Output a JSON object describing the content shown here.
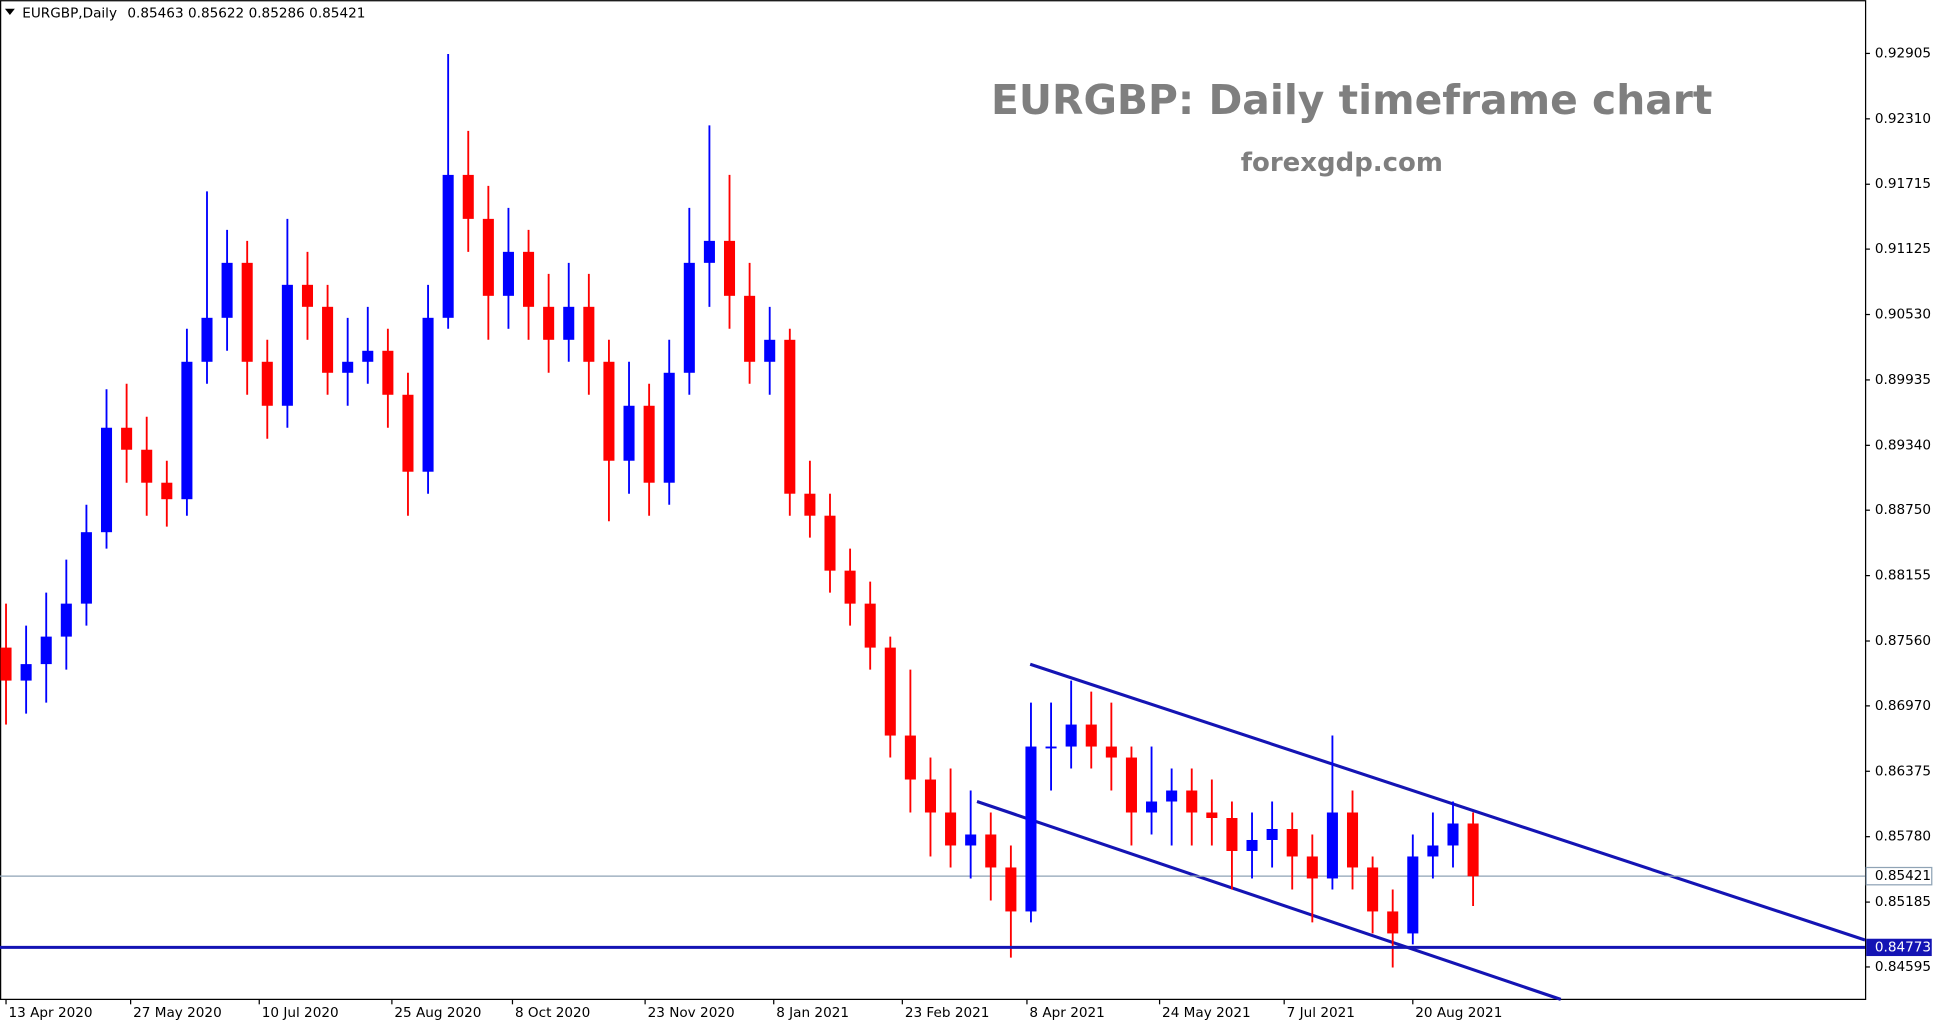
{
  "chart_data": {
    "type": "candlestick",
    "header": {
      "symbol": "EURGBP,Daily",
      "ohlc": [
        0.85463,
        0.85622,
        0.85286,
        0.85421
      ]
    },
    "title": "EURGBP: Daily timeframe chart",
    "subtitle": "forexgdp.com",
    "up_color": "#0000ff",
    "down_color": "#ff0000",
    "x": [
      0,
      5,
      10,
      15,
      20,
      25,
      30,
      35,
      40,
      45,
      50,
      55,
      60,
      65,
      70,
      75,
      80,
      85,
      90,
      95,
      100,
      105,
      110,
      115,
      120,
      125,
      130,
      135,
      140,
      145,
      150,
      155,
      160,
      165,
      170,
      175,
      180,
      185,
      190,
      195,
      200,
      205,
      210,
      215,
      220,
      225,
      230,
      235,
      240,
      245,
      250,
      255,
      260,
      265,
      270,
      275,
      280,
      285,
      290,
      295,
      300,
      305,
      310,
      315,
      320,
      325,
      330,
      335,
      340,
      345,
      350,
      355,
      360,
      365
    ],
    "open": [
      0.875,
      0.872,
      0.8735,
      0.876,
      0.879,
      0.8855,
      0.895,
      0.893,
      0.89,
      0.8885,
      0.901,
      0.905,
      0.91,
      0.901,
      0.897,
      0.908,
      0.906,
      0.9,
      0.901,
      0.902,
      0.898,
      0.891,
      0.905,
      0.918,
      0.914,
      0.907,
      0.911,
      0.906,
      0.903,
      0.906,
      0.901,
      0.892,
      0.897,
      0.89,
      0.9,
      0.91,
      0.912,
      0.907,
      0.901,
      0.903,
      0.889,
      0.887,
      0.882,
      0.879,
      0.875,
      0.867,
      0.863,
      0.86,
      0.857,
      0.858,
      0.855,
      0.851,
      0.866,
      0.866,
      0.868,
      0.866,
      0.865,
      0.86,
      0.861,
      0.862,
      0.86,
      0.8595,
      0.8565,
      0.8575,
      0.8585,
      0.856,
      0.854,
      0.86,
      0.855,
      0.851,
      0.849,
      0.856,
      0.857,
      0.859
    ],
    "high": [
      0.879,
      0.877,
      0.88,
      0.883,
      0.888,
      0.8985,
      0.899,
      0.896,
      0.892,
      0.904,
      0.9165,
      0.913,
      0.912,
      0.903,
      0.914,
      0.911,
      0.908,
      0.905,
      0.906,
      0.904,
      0.9,
      0.908,
      0.929,
      0.922,
      0.917,
      0.915,
      0.913,
      0.909,
      0.91,
      0.909,
      0.903,
      0.901,
      0.899,
      0.903,
      0.915,
      0.9225,
      0.918,
      0.91,
      0.906,
      0.904,
      0.892,
      0.889,
      0.884,
      0.881,
      0.876,
      0.873,
      0.865,
      0.864,
      0.862,
      0.86,
      0.857,
      0.87,
      0.87,
      0.872,
      0.871,
      0.87,
      0.866,
      0.866,
      0.864,
      0.864,
      0.863,
      0.861,
      0.86,
      0.861,
      0.86,
      0.858,
      0.867,
      0.862,
      0.856,
      0.853,
      0.858,
      0.86,
      0.861,
      0.86
    ],
    "low": [
      0.868,
      0.869,
      0.87,
      0.873,
      0.877,
      0.884,
      0.89,
      0.887,
      0.886,
      0.887,
      0.899,
      0.902,
      0.898,
      0.894,
      0.895,
      0.903,
      0.898,
      0.897,
      0.899,
      0.895,
      0.887,
      0.889,
      0.904,
      0.911,
      0.903,
      0.904,
      0.903,
      0.9,
      0.901,
      0.898,
      0.8865,
      0.889,
      0.887,
      0.888,
      0.898,
      0.906,
      0.904,
      0.899,
      0.898,
      0.887,
      0.885,
      0.88,
      0.877,
      0.873,
      0.865,
      0.86,
      0.856,
      0.855,
      0.854,
      0.852,
      0.8468,
      0.85,
      0.862,
      0.864,
      0.864,
      0.862,
      0.857,
      0.858,
      0.857,
      0.857,
      0.857,
      0.853,
      0.854,
      0.855,
      0.853,
      0.85,
      0.853,
      0.853,
      0.849,
      0.8459,
      0.848,
      0.854,
      0.855,
      0.8515
    ],
    "close": [
      0.872,
      0.8735,
      0.876,
      0.879,
      0.8855,
      0.895,
      0.893,
      0.89,
      0.8885,
      0.901,
      0.905,
      0.91,
      0.901,
      0.897,
      0.908,
      0.906,
      0.9,
      0.901,
      0.902,
      0.898,
      0.891,
      0.905,
      0.918,
      0.914,
      0.907,
      0.911,
      0.906,
      0.903,
      0.906,
      0.901,
      0.892,
      0.897,
      0.89,
      0.9,
      0.91,
      0.912,
      0.907,
      0.901,
      0.903,
      0.889,
      0.887,
      0.882,
      0.879,
      0.875,
      0.867,
      0.863,
      0.86,
      0.857,
      0.858,
      0.855,
      0.851,
      0.866,
      0.866,
      0.868,
      0.866,
      0.865,
      0.86,
      0.861,
      0.862,
      0.86,
      0.8595,
      0.8565,
      0.8575,
      0.8585,
      0.856,
      0.854,
      0.86,
      0.855,
      0.851,
      0.849,
      0.856,
      0.857,
      0.859,
      0.8542
    ],
    "xlim": [
      -1.5,
      462.5
    ],
    "xticks": [
      {
        "value": 0,
        "label": "13 Apr 2020"
      },
      {
        "value": 31,
        "label": "27 May 2020"
      },
      {
        "value": 63,
        "label": "10 Jul 2020"
      },
      {
        "value": 96,
        "label": "25 Aug 2020"
      },
      {
        "value": 126,
        "label": "8 Oct 2020"
      },
      {
        "value": 159,
        "label": "23 Nov 2020"
      },
      {
        "value": 191,
        "label": "8 Jan 2021"
      },
      {
        "value": 223,
        "label": "23 Feb 2021"
      },
      {
        "value": 254,
        "label": "8 Apr 2021"
      },
      {
        "value": 287,
        "label": "24 May 2021"
      },
      {
        "value": 318,
        "label": "7 Jul 2021"
      },
      {
        "value": 350,
        "label": "20 Aug 2021"
      }
    ],
    "ylim": [
      0.843,
      0.9339
    ],
    "yticks": [
      0.92905,
      {
        "value": 0.9231,
        "label": "0.92310"
      },
      0.91715,
      0.91125,
      {
        "value": 0.9053,
        "label": "0.90530"
      },
      0.89935,
      {
        "value": 0.8934,
        "label": "0.89340"
      },
      {
        "value": 0.8875,
        "label": "0.88750"
      },
      0.88155,
      {
        "value": 0.8756,
        "label": "0.87560"
      },
      {
        "value": 0.8697,
        "label": "0.86970"
      },
      0.86375,
      {
        "value": 0.8578,
        "label": "0.85780"
      },
      0.85185,
      0.84595
    ],
    "price_line": 0.85421,
    "support_line": 0.84773
  }
}
